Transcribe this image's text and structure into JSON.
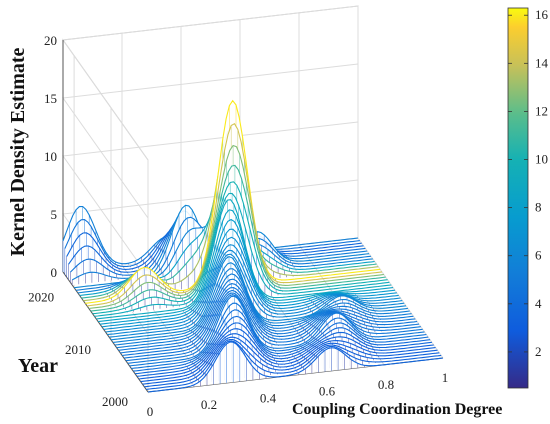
{
  "chart_data": {
    "type": "surface",
    "title": "",
    "xlabel": "Coupling Coordination Degree",
    "ylabel": "Year",
    "zlabel": "Kernel Density Estimate",
    "xlim": [
      0,
      1
    ],
    "ylim": [
      2000,
      2023
    ],
    "zlim": [
      0,
      20
    ],
    "x_ticks": [
      "0",
      "0.2",
      "0.4",
      "0.6",
      "0.8",
      "1"
    ],
    "y_ticks": [
      "2000",
      "2010",
      "2020"
    ],
    "z_ticks": [
      "0",
      "5",
      "10",
      "15",
      "20"
    ],
    "colorbar": {
      "range": [
        0.5,
        16.3
      ],
      "ticks": [
        "2",
        "4",
        "6",
        "8",
        "10",
        "12",
        "14",
        "16"
      ]
    },
    "grid": true,
    "annotations": [],
    "series": [
      {
        "year": 2000,
        "peaks": [
          {
            "x": 0.28,
            "density": 3.5
          },
          {
            "x": 0.62,
            "density": 2.0
          }
        ]
      },
      {
        "year": 2005,
        "peaks": [
          {
            "x": 0.35,
            "density": 5.0
          },
          {
            "x": 0.7,
            "density": 2.5
          }
        ]
      },
      {
        "year": 2010,
        "peaks": [
          {
            "x": 0.4,
            "density": 6.0
          },
          {
            "x": 0.78,
            "density": 1.5
          }
        ]
      },
      {
        "year": 2014,
        "peaks": [
          {
            "x": 0.45,
            "density": 9.0
          }
        ]
      },
      {
        "year": 2017,
        "peaks": [
          {
            "x": 0.5,
            "density": 16.0
          },
          {
            "x": 0.2,
            "density": 2.5
          }
        ]
      },
      {
        "year": 2020,
        "peaks": [
          {
            "x": 0.38,
            "density": 6.0
          },
          {
            "x": 0.62,
            "density": 3.0
          }
        ]
      },
      {
        "year": 2023,
        "peaks": [
          {
            "x": 0.06,
            "density": 5.5
          },
          {
            "x": 0.35,
            "density": 2.0
          }
        ]
      }
    ]
  }
}
